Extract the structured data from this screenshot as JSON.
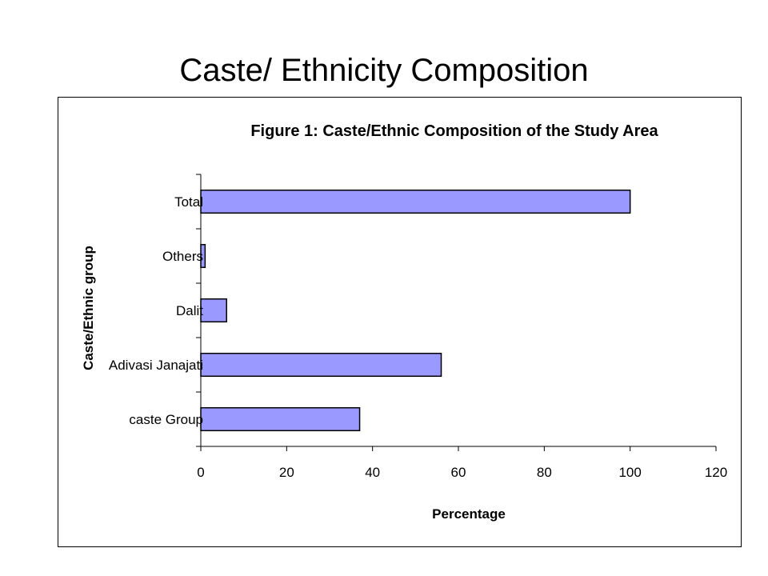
{
  "slide": {
    "title": "Caste/ Ethnicity Composition"
  },
  "colors": {
    "bar_fill": "#9999ff",
    "bar_stroke": "#000000",
    "axis": "#000000"
  },
  "chart_data": {
    "type": "bar",
    "orientation": "horizontal",
    "title": "Figure 1: Caste/Ethnic Composition of the Study Area",
    "xlabel": "Percentage",
    "ylabel": "Caste/Ethnic group",
    "categories": [
      "caste Group",
      "Adivasi Janajati",
      "Dalit",
      "Others",
      "Total"
    ],
    "values": [
      37,
      56,
      6,
      1,
      100
    ],
    "xlim": [
      0,
      120
    ],
    "xticks": [
      0,
      20,
      40,
      60,
      80,
      100,
      120
    ],
    "grid": false,
    "legend": "none"
  }
}
